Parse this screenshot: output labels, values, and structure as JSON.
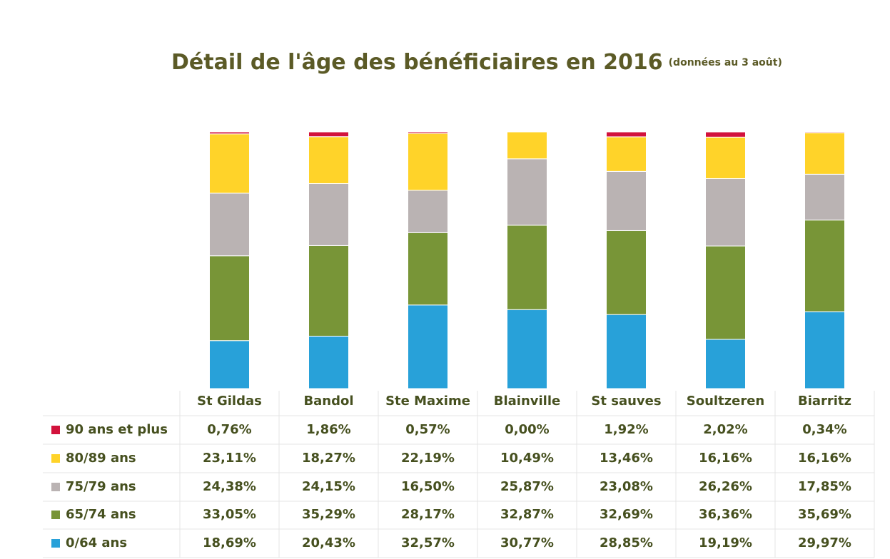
{
  "chart_data": {
    "type": "stacked_bar",
    "title": "Détail de l'âge des bénéficiaires en 2016",
    "subtitle": "(données au 3 août)",
    "categories": [
      "St Gildas",
      "Bandol",
      "Ste Maxime",
      "Blainville",
      "St sauves",
      "Soultzeren",
      "Biarritz"
    ],
    "series": [
      {
        "name": "90 ans et plus",
        "color": "#d2123c",
        "values": [
          0.76,
          1.86,
          0.57,
          0.0,
          1.92,
          2.02,
          0.34
        ],
        "value_labels": [
          "0,76%",
          "1,86%",
          "0,57%",
          "0,00%",
          "1,92%",
          "2,02%",
          "0,34%"
        ]
      },
      {
        "name": "80/89 ans",
        "color": "#ffd329",
        "values": [
          23.11,
          18.27,
          22.19,
          10.49,
          13.46,
          16.16,
          16.16
        ],
        "value_labels": [
          "23,11%",
          "18,27%",
          "22,19%",
          "10,49%",
          "13,46%",
          "16,16%",
          "16,16%"
        ]
      },
      {
        "name": "75/79 ans",
        "color": "#bab3b3",
        "values": [
          24.38,
          24.15,
          16.5,
          25.87,
          23.08,
          26.26,
          17.85
        ],
        "value_labels": [
          "24,38%",
          "24,15%",
          "16,50%",
          "25,87%",
          "23,08%",
          "26,26%",
          "17,85%"
        ]
      },
      {
        "name": "65/74 ans",
        "color": "#789537",
        "values": [
          33.05,
          35.29,
          28.17,
          32.87,
          32.69,
          36.36,
          35.69
        ],
        "value_labels": [
          "33,05%",
          "35,29%",
          "28,17%",
          "32,87%",
          "32,69%",
          "36,36%",
          "35,69%"
        ]
      },
      {
        "name": "0/64 ans",
        "color": "#28a1d9",
        "values": [
          18.69,
          20.43,
          32.57,
          30.77,
          28.85,
          19.19,
          29.97
        ],
        "value_labels": [
          "18,69%",
          "20,43%",
          "32,57%",
          "30,77%",
          "28,85%",
          "19,19%",
          "29,97%"
        ]
      }
    ]
  }
}
